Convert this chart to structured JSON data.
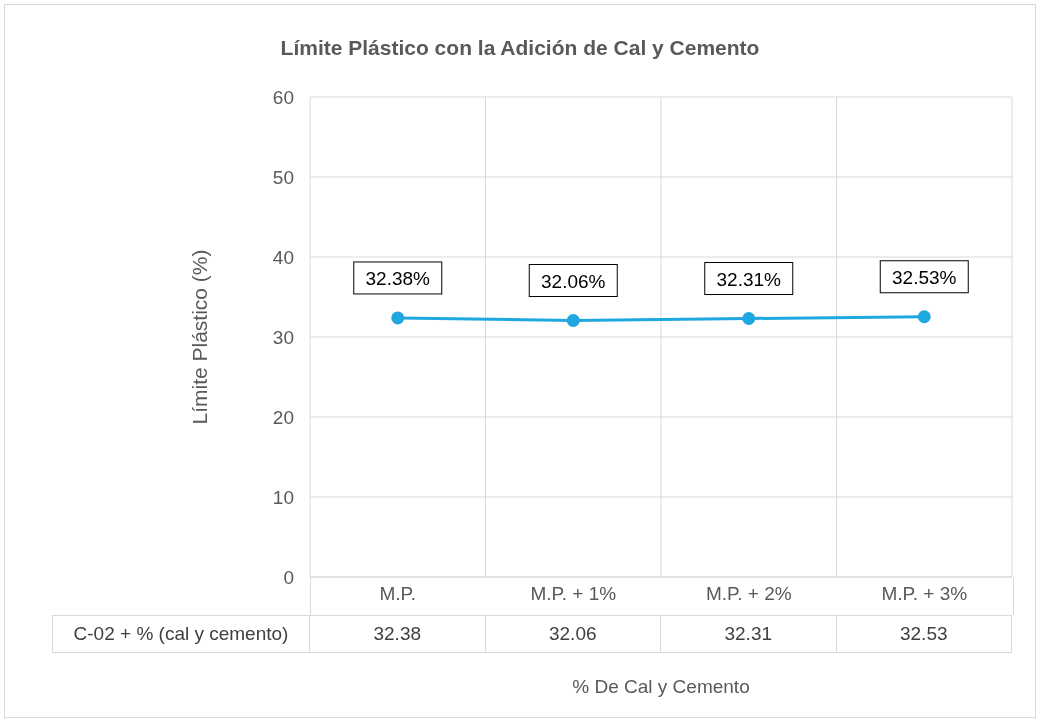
{
  "chart_data": {
    "type": "line",
    "title": "Límite Plástico con la Adición de Cal y Cemento",
    "xlabel": "% De Cal y Cemento",
    "ylabel": "Límite Plástico (%)",
    "categories": [
      "M.P.",
      "M.P. + 1%",
      "M.P. + 2%",
      "M.P. + 3%"
    ],
    "series": [
      {
        "name": "C-02 + % (cal y cemento)",
        "color": "#1fa8e0",
        "values": [
          32.38,
          32.06,
          32.31,
          32.53
        ]
      }
    ],
    "annotations": [
      {
        "text": "32.38%",
        "x": "M.P.",
        "y": 32.38
      },
      {
        "text": "32.06%",
        "x": "M.P. + 1%",
        "y": 32.06
      },
      {
        "text": "32.31%",
        "x": "M.P. + 2%",
        "y": 32.31
      },
      {
        "text": "32.53%",
        "x": "M.P. + 3%",
        "y": 32.53
      }
    ],
    "ylim": [
      0,
      60
    ],
    "yticks": [
      0,
      10,
      20,
      30,
      40,
      50,
      60
    ],
    "grid": true,
    "marker": "circle",
    "data_labels": true
  }
}
